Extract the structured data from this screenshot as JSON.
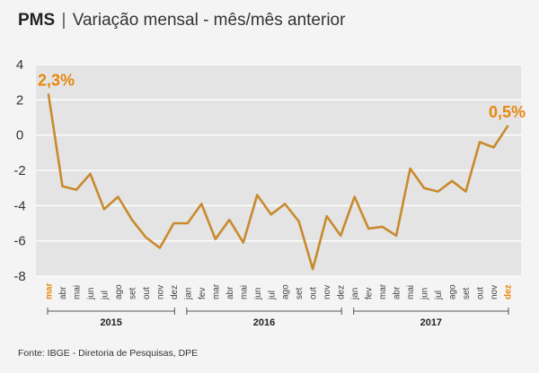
{
  "title": {
    "strong": "PMS",
    "sep": "|",
    "rest": "Variação mensal - mês/mês anterior"
  },
  "source": "Fonte: IBGE - Diretoria de Pesquisas, DPE",
  "colors": {
    "line": "#c98a2e",
    "highlight": "#e8870e",
    "plot_bg": "#e4e4e4",
    "grid": "#ffffff"
  },
  "chart_data": {
    "type": "line",
    "x": [
      "mar",
      "abr",
      "mai",
      "jun",
      "jul",
      "ago",
      "set",
      "out",
      "nov",
      "dez",
      "jan",
      "fev",
      "mar",
      "abr",
      "mai",
      "jun",
      "jul",
      "ago",
      "set",
      "out",
      "nov",
      "dez",
      "jan",
      "fev",
      "mar",
      "abr",
      "mai",
      "jun",
      "jul",
      "ago",
      "set",
      "out",
      "nov",
      "dez"
    ],
    "highlight_months": [
      0,
      33
    ],
    "years": [
      {
        "label": "2015",
        "start": 0,
        "end": 9
      },
      {
        "label": "2016",
        "start": 10,
        "end": 21
      },
      {
        "label": "2017",
        "start": 22,
        "end": 33
      }
    ],
    "series": [
      {
        "values": [
          2.3,
          -2.9,
          -3.1,
          -2.2,
          -4.2,
          -3.5,
          -4.8,
          -5.8,
          -6.4,
          -5.0,
          -5.0,
          -3.9,
          -5.9,
          -4.8,
          -6.1,
          -3.4,
          -4.5,
          -3.9,
          -4.9,
          -7.6,
          -4.6,
          -5.7,
          -3.5,
          -5.3,
          -5.2,
          -5.7,
          -1.9,
          -3.0,
          -3.2,
          -2.6,
          -3.2,
          -0.4,
          -0.7,
          0.5
        ]
      }
    ],
    "yticks": [
      4,
      2,
      0,
      -2,
      -4,
      -6,
      -8
    ],
    "ylim": [
      -8,
      4
    ],
    "annotations": [
      {
        "index": 0,
        "text": "2,3%"
      },
      {
        "index": 33,
        "text": "0,5%"
      }
    ],
    "grid": true
  }
}
